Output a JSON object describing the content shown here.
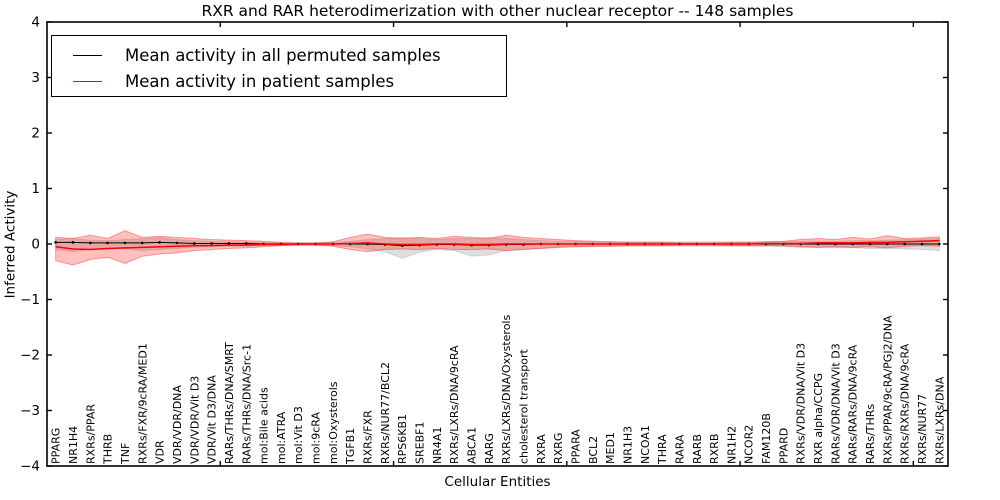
{
  "chart_data": {
    "type": "line",
    "title": "RXR and RAR heterodimerization with other nuclear receptor -- 148 samples",
    "xlabel": "Cellular Entities",
    "ylabel": "Inferred Activity",
    "ylim": [
      -4,
      4
    ],
    "yticks": [
      4,
      3,
      2,
      1,
      0,
      -1,
      -2,
      -3,
      -4
    ],
    "xticks": [
      10,
      20,
      30,
      40,
      50
    ],
    "grid": false,
    "legend_position": "upper left",
    "colors": {
      "permuted_line": "#000000",
      "patient_line": "#ff0000",
      "permuted_band": "rgba(0,0,0,0.13)",
      "patient_band": "rgba(255,0,0,0.25)"
    },
    "categories": [
      "PPARG",
      "NR1H4",
      "RXRs/PPAR",
      "THRB",
      "TNF",
      "RXRs/FXR/9cRA/MED1",
      "VDR",
      "VDR/VDR/DNA",
      "VDR/VDR/Vit D3",
      "VDR/Vit D3/DNA",
      "RARs/THRs/DNA/SMRT",
      "RARs/THRs/DNA/Src-1",
      "mol:Bile acids",
      "mol:ATRA",
      "mol:Vit D3",
      "mol:9cRA",
      "mol:Oxysterols",
      "TGFB1",
      "RXRs/FXR",
      "RXRs/NUR77/BCL2",
      "RPS6KB1",
      "SREBF1",
      "NR4A1",
      "RXRs/LXRs/DNA/9cRA",
      "ABCA1",
      "RARG",
      "RXRs/LXRs/DNA/Oxysterols",
      "cholesterol transport",
      "RXRA",
      "RXRG",
      "PPARA",
      "BCL2",
      "MED1",
      "NR1H3",
      "NCOA1",
      "THRA",
      "RARA",
      "RARB",
      "RXRB",
      "NR1H2",
      "NCOR2",
      "FAM120B",
      "PPARD",
      "RXRs/VDR/DNA/Vit D3",
      "RXR alpha/CCPG",
      "RARs/VDR/DNA/Vit D3",
      "RARs/RARs/DNA/9cRA",
      "RARs/THRs",
      "RXRs/PPAR/9cRA/PGJ2/DNA",
      "RXRs/RXRs/DNA/9cRA",
      "RXRs/NUR77",
      "RXRs/LXRs/DNA"
    ],
    "series": [
      {
        "name": "Mean activity in all permuted samples",
        "color": "#000000",
        "values": [
          0.03,
          0.03,
          0.02,
          0.02,
          0.02,
          0.02,
          0.03,
          0.02,
          0.01,
          0.01,
          0.01,
          0.01,
          0,
          0,
          0,
          0,
          0,
          0,
          0,
          -0.01,
          -0.03,
          -0.02,
          -0.01,
          -0.01,
          -0.02,
          -0.02,
          -0.01,
          -0.01,
          0,
          0,
          0,
          0,
          0,
          0,
          0,
          0,
          0,
          0,
          0,
          0,
          0,
          0,
          0,
          0,
          0,
          0,
          0,
          0,
          0,
          0,
          0,
          0
        ],
        "band_upper": [
          0.08,
          0.1,
          0.07,
          0.06,
          0.08,
          0.1,
          0.12,
          0.08,
          0.06,
          0.05,
          0.04,
          0.04,
          0.03,
          0.02,
          0.02,
          0.02,
          0.03,
          0.05,
          0.08,
          0.1,
          0.12,
          0.1,
          0.08,
          0.1,
          0.1,
          0.12,
          0.1,
          0.08,
          0.06,
          0.05,
          0.05,
          0.04,
          0.04,
          0.04,
          0.04,
          0.04,
          0.04,
          0.04,
          0.04,
          0.04,
          0.04,
          0.04,
          0.04,
          0.05,
          0.05,
          0.05,
          0.06,
          0.06,
          0.07,
          0.08,
          0.09,
          0.1
        ],
        "band_lower": [
          -0.1,
          -0.14,
          -0.1,
          -0.08,
          -0.09,
          -0.12,
          -0.1,
          -0.08,
          -0.06,
          -0.05,
          -0.04,
          -0.04,
          -0.03,
          -0.02,
          -0.02,
          -0.02,
          -0.03,
          -0.05,
          -0.09,
          -0.14,
          -0.26,
          -0.15,
          -0.1,
          -0.12,
          -0.22,
          -0.2,
          -0.12,
          -0.1,
          -0.08,
          -0.06,
          -0.05,
          -0.05,
          -0.04,
          -0.04,
          -0.04,
          -0.04,
          -0.04,
          -0.04,
          -0.04,
          -0.04,
          -0.04,
          -0.04,
          -0.05,
          -0.06,
          -0.06,
          -0.07,
          -0.07,
          -0.08,
          -0.08,
          -0.09,
          -0.1,
          -0.12
        ]
      },
      {
        "name": "Mean activity in patient samples",
        "color": "#ff0000",
        "values": [
          -0.05,
          -0.09,
          -0.1,
          -0.08,
          -0.07,
          -0.06,
          -0.05,
          -0.04,
          -0.03,
          -0.03,
          -0.02,
          -0.02,
          -0.01,
          -0.01,
          0,
          0,
          0,
          0.01,
          0.02,
          0,
          -0.01,
          -0.01,
          0,
          0,
          -0.01,
          -0.01,
          0,
          0,
          0,
          0,
          0,
          0,
          0,
          0,
          0,
          0,
          0,
          0,
          0,
          0,
          0,
          0.01,
          0.01,
          0.01,
          0.02,
          0.02,
          0.02,
          0.03,
          0.03,
          0.04,
          0.05,
          0.06
        ],
        "band_upper": [
          0.12,
          0.1,
          0.16,
          0.1,
          0.24,
          0.12,
          0.14,
          0.12,
          0.1,
          0.08,
          0.07,
          0.06,
          0.05,
          0.03,
          0.02,
          0.02,
          0.04,
          0.12,
          0.18,
          0.12,
          0.1,
          0.12,
          0.1,
          0.14,
          0.12,
          0.1,
          0.16,
          0.12,
          0.1,
          0.08,
          0.06,
          0.05,
          0.04,
          0.03,
          0.03,
          0.03,
          0.02,
          0.02,
          0.02,
          0.03,
          0.03,
          0.04,
          0.05,
          0.08,
          0.1,
          0.08,
          0.12,
          0.09,
          0.15,
          0.1,
          0.11,
          0.13
        ],
        "band_lower": [
          -0.3,
          -0.38,
          -0.28,
          -0.24,
          -0.35,
          -0.22,
          -0.18,
          -0.16,
          -0.12,
          -0.1,
          -0.08,
          -0.07,
          -0.05,
          -0.03,
          -0.02,
          -0.02,
          -0.04,
          -0.1,
          -0.14,
          -0.1,
          -0.09,
          -0.1,
          -0.08,
          -0.1,
          -0.1,
          -0.09,
          -0.12,
          -0.1,
          -0.08,
          -0.06,
          -0.05,
          -0.04,
          -0.04,
          -0.03,
          -0.03,
          -0.03,
          -0.02,
          -0.02,
          -0.02,
          -0.03,
          -0.03,
          -0.03,
          -0.03,
          -0.05,
          -0.06,
          -0.05,
          -0.06,
          -0.05,
          -0.07,
          -0.04,
          -0.03,
          -0.04
        ]
      }
    ]
  }
}
